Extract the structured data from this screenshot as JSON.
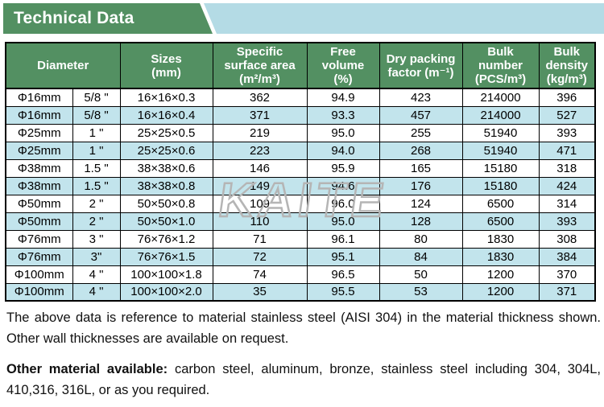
{
  "banner": {
    "title": "Technical Data"
  },
  "colors": {
    "green": "#539062",
    "row_alt_blue": "#c2e4ec",
    "banner_blue": "#b4dbe5",
    "watermark_gray": "#b5b5b5"
  },
  "watermark": "KAITE",
  "table": {
    "header": {
      "diameter": "Diameter",
      "sizes": "Sizes\n(mm)",
      "specific_surface_area": "Specific\nsurface area\n(m²/m³)",
      "free_volume": "Free\nvolume\n(%)",
      "dry_packing_factor": "Dry packing\nfactor (m⁻¹)",
      "bulk_number": "Bulk\nnumber\n(PCS/m³)",
      "bulk_density": "Bulk\ndensity\n(kg/m³)"
    },
    "rows": [
      [
        "Φ16mm",
        "5/8 \"",
        "16×16×0.3",
        "362",
        "94.9",
        "423",
        "214000",
        "396"
      ],
      [
        "Φ16mm",
        "5/8 \"",
        "16×16×0.4",
        "371",
        "93.3",
        "457",
        "214000",
        "527"
      ],
      [
        "Φ25mm",
        "1 \"",
        "25×25×0.5",
        "219",
        "95.0",
        "255",
        "51940",
        "393"
      ],
      [
        "Φ25mm",
        "1 \"",
        "25×25×0.6",
        "223",
        "94.0",
        "268",
        "51940",
        "471"
      ],
      [
        "Φ38mm",
        "1.5 \"",
        "38×38×0.6",
        "146",
        "95.9",
        "165",
        "15180",
        "318"
      ],
      [
        "Φ38mm",
        "1.5 \"",
        "38×38×0.8",
        "149",
        "94.6",
        "176",
        "15180",
        "424"
      ],
      [
        "Φ50mm",
        "2 \"",
        "50×50×0.8",
        "109",
        "96.0",
        "124",
        "6500",
        "314"
      ],
      [
        "Φ50mm",
        "2 \"",
        "50×50×1.0",
        "110",
        "95.0",
        "128",
        "6500",
        "393"
      ],
      [
        "Φ76mm",
        "3 \"",
        "76×76×1.2",
        "71",
        "96.1",
        "80",
        "1830",
        "308"
      ],
      [
        "Φ76mm",
        "3\"",
        "76×76×1.5",
        "72",
        "95.1",
        "84",
        "1830",
        "384"
      ],
      [
        "Φ100mm",
        "4 \"",
        "100×100×1.8",
        "74",
        "96.5",
        "50",
        "1200",
        "370"
      ],
      [
        "Φ100mm",
        "4 \"",
        "100×100×2.0",
        "35",
        "95.5",
        "53",
        "1200",
        "371"
      ]
    ]
  },
  "notes": {
    "reference": "The above data is reference to material stainless steel (AISI 304) in the material thickness shown. Other wall thicknesses are available on request.",
    "materials_label": "Other material available:",
    "materials_text": "carbon steel, aluminum, bronze, stainless steel including 304, 304L, 410,316, 316L, or as you required."
  }
}
